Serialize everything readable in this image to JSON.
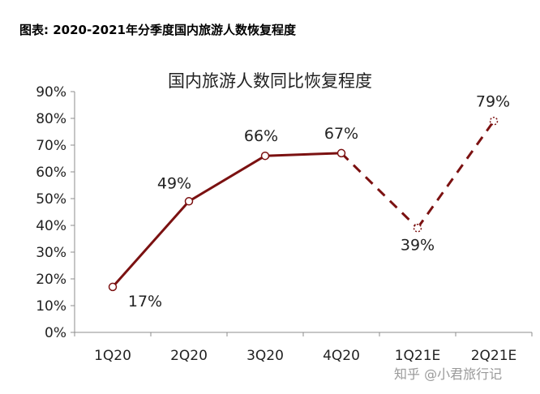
{
  "caption": "图表: 2020-2021年分季度国内旅游人数恢复程度",
  "watermark": "知乎 @小君旅行记",
  "colors": {
    "line": "#7b1111",
    "axis": "#8c8c8c",
    "text": "#222222"
  },
  "chart_data": {
    "type": "line",
    "title": "国内旅游人数同比恢复程度",
    "xlabel": "",
    "ylabel": "",
    "categories": [
      "1Q20",
      "2Q20",
      "3Q20",
      "4Q20",
      "1Q21E",
      "2Q21E"
    ],
    "series": [
      {
        "values": [
          17,
          49,
          66,
          67,
          39,
          79
        ],
        "labels": [
          "17%",
          "49%",
          "66%",
          "67%",
          "39%",
          "79%"
        ],
        "style": [
          "solid",
          "solid",
          "solid",
          "dashed",
          "dashed"
        ]
      }
    ],
    "ylim": [
      0,
      90
    ],
    "yticks": [
      "0%",
      "10%",
      "20%",
      "30%",
      "40%",
      "50%",
      "60%",
      "70%",
      "80%",
      "90%"
    ],
    "grid": false,
    "legend": "none"
  }
}
